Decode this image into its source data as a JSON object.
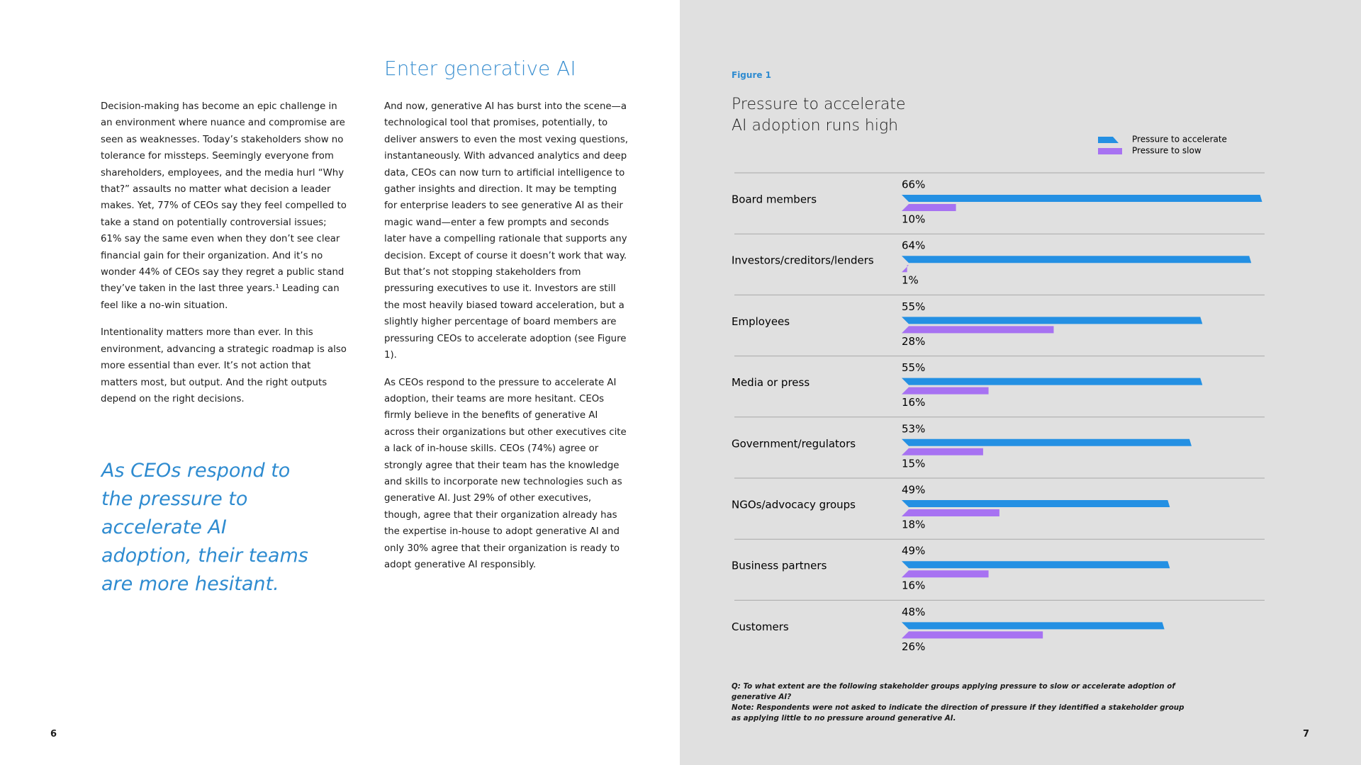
{
  "left_page": {
    "column_1": {
      "paragraphs": [
        "Decision-making has become an epic challenge in an environment where nuance and compromise are seen as weaknesses. Today’s stakeholders show no tolerance for missteps. Seemingly everyone from shareholders, employees, and the media hurl “Why that?” assaults no matter what decision a leader makes. Yet, 77% of CEOs say they feel compelled to take a stand on potentially controversial issues; 61% say the same even when they don’t see clear financial gain for their organization. And it’s no wonder 44% of CEOs say they regret a public stand they’ve taken in the last three years.¹ Leading can feel like a no-win situation.",
        "Intentionality matters more than ever. In this environment, advancing a strategic roadmap is also more essential than ever. It’s not action that matters most, but output. And the right outputs depend on the right decisions."
      ],
      "pull_quote": "As CEOs respond to the pressure to accelerate AI adoption, their teams are more hesitant."
    },
    "column_2": {
      "heading": "Enter generative AI",
      "paragraphs": [
        "And now, generative AI has burst into the scene—a technological tool that promises, potentially, to deliver answers to even the most vexing questions, instantaneously. With advanced analytics and deep data, CEOs can now turn to artificial intelligence to gather insights and direction. It may be tempting for enterprise leaders to see generative AI as their magic wand—enter a few prompts and seconds later have a compelling rationale that supports any decision. Except of course it doesn’t work that way. But that’s not stopping stakeholders from pressuring executives to use it. Investors are still the most heavily biased toward acceleration, but a slightly higher percentage of board members are pressuring CEOs to accelerate adoption (see Figure 1).",
        "As CEOs respond to the pressure to accelerate AI adoption, their teams are more hesitant. CEOs firmly believe in the benefits of generative AI across their organizations but other executives cite a lack of in-house skills. CEOs (74%) agree or strongly agree that their team has the knowledge and skills to incorporate new technologies such as generative AI. Just 29% of other executives, though, agree that their organization already has the expertise in-house to adopt generative AI and only 30% agree that their organization is ready to adopt generative AI responsibly."
      ]
    },
    "page_number": "6"
  },
  "right_page": {
    "figure_label": "Figure 1",
    "page_number": "7"
  },
  "chart_data": {
    "type": "bar",
    "orientation": "horizontal",
    "title": "Pressure to accelerate AI adoption runs high",
    "categories": [
      "Board members",
      "Investors/creditors/lenders",
      "Employees",
      "Media or press",
      "Government/regulators",
      "NGOs/advocacy groups",
      "Business partners",
      "Customers"
    ],
    "series": [
      {
        "name": "Pressure to accelerate",
        "color": "#2490e3",
        "values": [
          66,
          64,
          55,
          55,
          53,
          49,
          49,
          48
        ],
        "value_labels": [
          "66%",
          "64%",
          "55%",
          "55%",
          "53%",
          "49%",
          "49%",
          "48%"
        ]
      },
      {
        "name": "Pressure to slow",
        "color": "#a772f2",
        "values": [
          10,
          1,
          28,
          16,
          15,
          18,
          16,
          26
        ],
        "value_labels": [
          "10%",
          "1%",
          "28%",
          "16%",
          "15%",
          "18%",
          "16%",
          "26%"
        ]
      }
    ],
    "legend": "top-right",
    "notes": [
      "Q: To what extent are the following stakeholder groups applying pressure to slow or accelerate adoption of generative AI?",
      "Note: Respondents were not asked to indicate the direction of pressure if they identified a stakeholder group as applying little to no pressure around generative AI."
    ]
  }
}
